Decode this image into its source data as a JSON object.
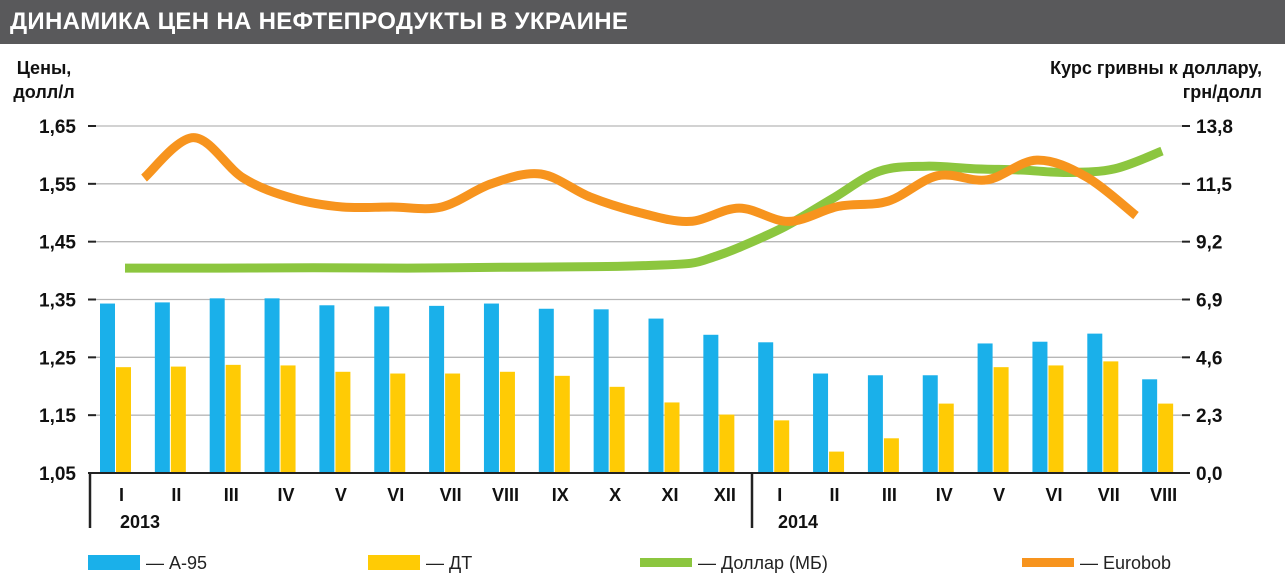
{
  "header": {
    "title": "ДИНАМИКА ЦЕН НА НЕФТЕПРОДУКТЫ В УКРАИНЕ"
  },
  "chart_data": {
    "type": "bar+line",
    "title": "ДИНАМИКА ЦЕН НА НЕФТЕПРОДУКТЫ В УКРАИНЕ",
    "y_left": {
      "label_lines": [
        "Цены,",
        "долл/л"
      ],
      "ticks": [
        "1,65",
        "1,55",
        "1,45",
        "1,35",
        "1,25",
        "1,15",
        "1,05"
      ],
      "range": [
        1.05,
        1.65
      ]
    },
    "y_right": {
      "label_lines": [
        "Курс гривны к доллару,",
        "грн/долл"
      ],
      "ticks": [
        "13,8",
        "11,5",
        "9,2",
        "6,9",
        "4,6",
        "2,3",
        "0,0"
      ],
      "range": [
        0,
        13.8
      ]
    },
    "categories": [
      "I",
      "II",
      "III",
      "IV",
      "V",
      "VI",
      "VII",
      "VIII",
      "IX",
      "X",
      "XI",
      "XII",
      "I",
      "II",
      "III",
      "IV",
      "V",
      "VI",
      "VII",
      "VIII"
    ],
    "years": [
      {
        "label": "2013",
        "start_index": 0
      },
      {
        "label": "2014",
        "start_index": 12
      }
    ],
    "series": [
      {
        "name": "А-95",
        "kind": "bar",
        "axis": "left",
        "color": "#1ab0ea",
        "values": [
          1.343,
          1.345,
          1.352,
          1.352,
          1.34,
          1.338,
          1.339,
          1.343,
          1.334,
          1.333,
          1.317,
          1.289,
          1.276,
          1.222,
          1.219,
          1.219,
          1.274,
          1.277,
          1.291,
          1.212
        ]
      },
      {
        "name": "ДТ",
        "kind": "bar",
        "axis": "left",
        "color": "#ffcb05",
        "values": [
          1.233,
          1.234,
          1.237,
          1.236,
          1.225,
          1.222,
          1.222,
          1.225,
          1.218,
          1.199,
          1.172,
          1.151,
          1.141,
          1.087,
          1.11,
          1.17,
          1.233,
          1.236,
          1.243,
          1.17
        ]
      },
      {
        "name": "Доллар (МБ)",
        "kind": "line",
        "axis": "right",
        "color": "#8cc63f",
        "x": [
          0,
          2,
          4,
          6,
          8,
          10,
          11,
          12,
          12.5,
          13,
          14,
          15,
          16,
          17,
          18,
          19,
          20,
          21,
          22
        ],
        "values": [
          8.15,
          8.15,
          8.16,
          8.15,
          8.18,
          8.21,
          8.25,
          8.34,
          8.6,
          8.95,
          9.8,
          10.9,
          12,
          12.2,
          12.1,
          12.05,
          11.95,
          12.1,
          12.8
        ]
      },
      {
        "name": "Eurobob",
        "kind": "line",
        "axis": "left",
        "color": "#f7941e",
        "x": [
          0,
          1,
          2,
          3,
          4,
          5,
          6,
          7,
          8,
          9,
          10,
          11,
          12,
          13,
          14,
          15,
          16,
          17,
          18,
          19
        ],
        "values": [
          1.56,
          1.63,
          1.56,
          1.525,
          1.51,
          1.51,
          1.51,
          1.55,
          1.567,
          1.527,
          1.5,
          1.485,
          1.508,
          1.485,
          1.511,
          1.52,
          1.564,
          1.557,
          1.591,
          1.562
        ]
      }
    ],
    "extra_line_points": {
      "Eurobob": [
        [
          20,
          1.495
        ]
      ]
    },
    "legend": [
      {
        "name": "А-95",
        "label": "— А-95",
        "color": "#1ab0ea",
        "kind": "bar"
      },
      {
        "name": "ДТ",
        "label": "— ДТ",
        "color": "#ffcb05",
        "kind": "bar"
      },
      {
        "name": "Доллар (МБ)",
        "label": "— Доллар (МБ)",
        "color": "#8cc63f",
        "kind": "line"
      },
      {
        "name": "Eurobob",
        "label": "— Eurobob",
        "color": "#f7941e",
        "kind": "line"
      }
    ],
    "legend_position": "bottom",
    "grid": true
  }
}
